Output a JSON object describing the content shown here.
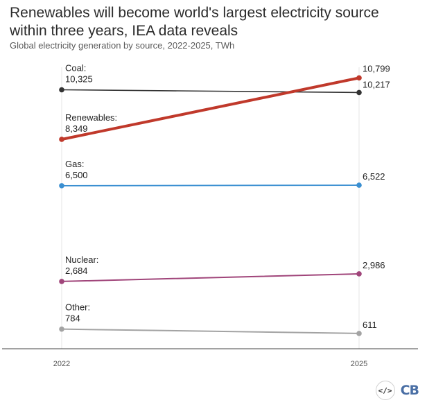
{
  "title": "Renewables will become world's largest electricity source within three years, IEA data reveals",
  "subtitle": "Global electricity generation by source, 2022-2025, TWh",
  "brand": {
    "embed_icon": "</>",
    "logo": "CB"
  },
  "chart_data": {
    "type": "line",
    "x": [
      "2022",
      "2025"
    ],
    "ylim": [
      0,
      11500
    ],
    "grid": false,
    "series": [
      {
        "name": "Coal:",
        "values": [
          10325,
          10217
        ],
        "labels": [
          "10,325",
          "10,217"
        ],
        "color": "#333333",
        "width": 1.6
      },
      {
        "name": "Renewables:",
        "values": [
          8349,
          10799
        ],
        "labels": [
          "8,349",
          "10,799"
        ],
        "color": "#c0392b",
        "width": 4
      },
      {
        "name": "Gas:",
        "values": [
          6500,
          6522
        ],
        "labels": [
          "6,500",
          "6,522"
        ],
        "color": "#3a8fd1",
        "width": 1.8
      },
      {
        "name": "Nuclear:",
        "values": [
          2684,
          2986
        ],
        "labels": [
          "2,684",
          "2,986"
        ],
        "color": "#a0457a",
        "width": 2
      },
      {
        "name": "Other:",
        "values": [
          784,
          611
        ],
        "labels": [
          "784",
          "611"
        ],
        "color": "#a3a3a3",
        "width": 2
      }
    ]
  }
}
